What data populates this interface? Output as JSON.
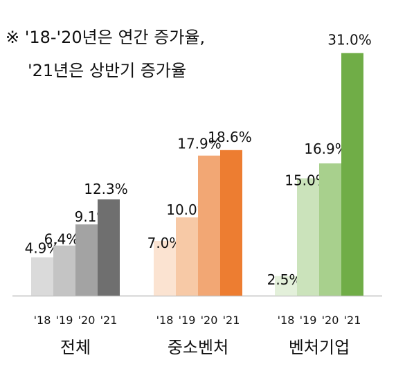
{
  "note": {
    "line1": "※ '18-'20년은 연간 증가율,",
    "line2": "'21년은 상반기 증가율"
  },
  "chart_data": {
    "type": "bar",
    "unit": "%",
    "ylim": [
      0,
      32
    ],
    "year_labels": [
      "'18",
      "'19",
      "'20",
      "'21"
    ],
    "groups": [
      {
        "name": "전체",
        "values": [
          4.9,
          6.4,
          9.1,
          12.3
        ],
        "labels": [
          "4.9%",
          "6.4%",
          "9.1%",
          "12.3%"
        ],
        "colors": [
          "#dadada",
          "#c4c4c4",
          "#a3a3a3",
          "#6f6f6f"
        ]
      },
      {
        "name": "중소벤처",
        "values": [
          7.0,
          10.0,
          17.9,
          18.6
        ],
        "labels": [
          "7.0%",
          "10.0%",
          "17.9%",
          "18.6%"
        ],
        "colors": [
          "#fbe3d1",
          "#f7c9a6",
          "#f2a774",
          "#ed7d31"
        ]
      },
      {
        "name": "벤처기업",
        "values": [
          2.5,
          15.0,
          16.9,
          31.0
        ],
        "labels": [
          "2.5%",
          "15.0%",
          "16.9%",
          "31.0%"
        ],
        "colors": [
          "#e3f0da",
          "#cbe3bb",
          "#a8d08d",
          "#70ad47"
        ]
      }
    ]
  }
}
